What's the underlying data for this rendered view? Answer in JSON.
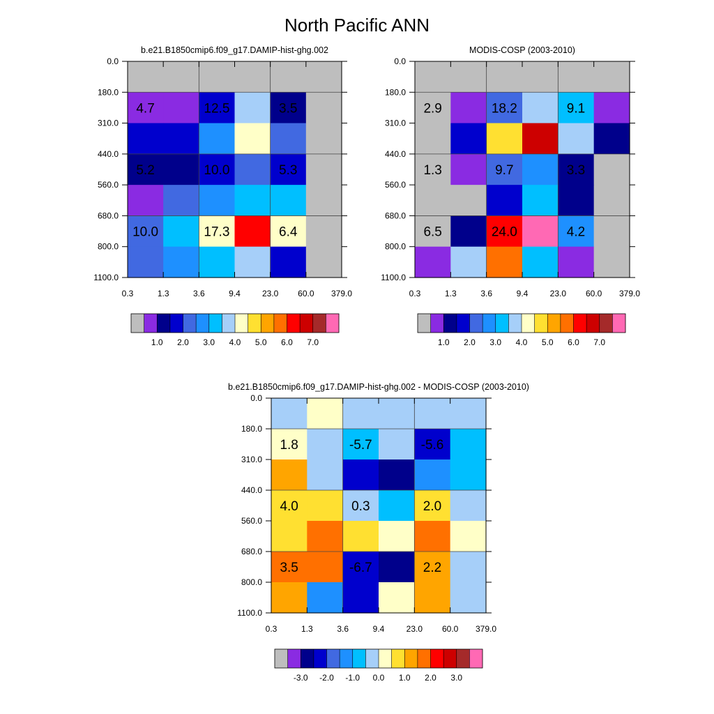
{
  "title": "North Pacific ANN",
  "palettes": {
    "abs": [
      "#bebebe",
      "#8a2be2",
      "#00008b",
      "#0000cd",
      "#4169e1",
      "#1e90ff",
      "#00bfff",
      "#a6cff9",
      "#ffffc8",
      "#ffe031",
      "#ffa500",
      "#ff7000",
      "#ff0000",
      "#cd0000",
      "#a52a2a",
      "#ff69b4"
    ],
    "diff": [
      "#bebebe",
      "#8a2be2",
      "#00008b",
      "#0000cd",
      "#4169e1",
      "#1e90ff",
      "#00bfff",
      "#a6cff9",
      "#ffffc8",
      "#ffe031",
      "#ffa500",
      "#ff7000",
      "#ff0000",
      "#cd0000",
      "#a52a2a",
      "#ff69b4"
    ]
  },
  "chart_data": [
    {
      "type": "heatmap",
      "title": "b.e21.B1850cmip6.f09_g17.DAMIP-hist-ghg.002",
      "x_tick_labels": [
        "0.3",
        "1.3",
        "3.6",
        "9.4",
        "23.0",
        "60.0",
        "379.0"
      ],
      "y_tick_labels": [
        "0.0",
        "180.0",
        "310.0",
        "440.0",
        "560.0",
        "680.0",
        "800.0",
        "1100.0"
      ],
      "colorbar_labels": [
        "1.0",
        "2.0",
        "3.0",
        "4.0",
        "5.0",
        "6.0",
        "7.0"
      ],
      "palette": "abs",
      "cells": [
        [
          0,
          0,
          0,
          0,
          0,
          0
        ],
        [
          1,
          1,
          3,
          7,
          2,
          0
        ],
        [
          3,
          3,
          5,
          8,
          4,
          0
        ],
        [
          2,
          2,
          3,
          4,
          3,
          0
        ],
        [
          1,
          4,
          5,
          6,
          6,
          0
        ],
        [
          4,
          6,
          8,
          12,
          8,
          0
        ],
        [
          4,
          5,
          6,
          7,
          3,
          0
        ]
      ],
      "annotations": [
        {
          "text": "4.7",
          "col": 0.5,
          "row": 1.5
        },
        {
          "text": "12.5",
          "col": 2.5,
          "row": 1.5
        },
        {
          "text": "3.5",
          "col": 4.5,
          "row": 1.5
        },
        {
          "text": "5.2",
          "col": 0.5,
          "row": 3.5
        },
        {
          "text": "10.0",
          "col": 2.5,
          "row": 3.5
        },
        {
          "text": "5.3",
          "col": 4.5,
          "row": 3.5
        },
        {
          "text": "10.0",
          "col": 0.5,
          "row": 5.5
        },
        {
          "text": "17.3",
          "col": 2.5,
          "row": 5.5
        },
        {
          "text": "6.4",
          "col": 4.5,
          "row": 5.5
        }
      ]
    },
    {
      "type": "heatmap",
      "title": "MODIS-COSP (2003-2010)",
      "x_tick_labels": [
        "0.3",
        "1.3",
        "3.6",
        "9.4",
        "23.0",
        "60.0",
        "379.0"
      ],
      "y_tick_labels": [
        "0.0",
        "180.0",
        "310.0",
        "440.0",
        "560.0",
        "680.0",
        "800.0",
        "1100.0"
      ],
      "colorbar_labels": [
        "1.0",
        "2.0",
        "3.0",
        "4.0",
        "5.0",
        "6.0",
        "7.0"
      ],
      "palette": "abs",
      "cells": [
        [
          0,
          0,
          0,
          0,
          0,
          0
        ],
        [
          0,
          1,
          4,
          7,
          6,
          1
        ],
        [
          0,
          3,
          9,
          13,
          7,
          2
        ],
        [
          0,
          1,
          4,
          5,
          2,
          0
        ],
        [
          0,
          0,
          3,
          6,
          2,
          0
        ],
        [
          0,
          2,
          12,
          15,
          5,
          0
        ],
        [
          1,
          7,
          11,
          6,
          1,
          0
        ]
      ],
      "annotations": [
        {
          "text": "2.9",
          "col": 0.5,
          "row": 1.5
        },
        {
          "text": "18.2",
          "col": 2.5,
          "row": 1.5
        },
        {
          "text": "9.1",
          "col": 4.5,
          "row": 1.5
        },
        {
          "text": "1.3",
          "col": 0.5,
          "row": 3.5
        },
        {
          "text": "9.7",
          "col": 2.5,
          "row": 3.5
        },
        {
          "text": "3.3",
          "col": 4.5,
          "row": 3.5
        },
        {
          "text": "6.5",
          "col": 0.5,
          "row": 5.5
        },
        {
          "text": "24.0",
          "col": 2.5,
          "row": 5.5
        },
        {
          "text": "4.2",
          "col": 4.5,
          "row": 5.5
        }
      ]
    },
    {
      "type": "heatmap",
      "title": "b.e21.B1850cmip6.f09_g17.DAMIP-hist-ghg.002 - MODIS-COSP (2003-2010)",
      "x_tick_labels": [
        "0.3",
        "1.3",
        "3.6",
        "9.4",
        "23.0",
        "60.0",
        "379.0"
      ],
      "y_tick_labels": [
        "0.0",
        "180.0",
        "310.0",
        "440.0",
        "560.0",
        "680.0",
        "800.0",
        "1100.0"
      ],
      "colorbar_labels": [
        "-3.0",
        "-2.0",
        "-1.0",
        "0.0",
        "1.0",
        "2.0",
        "3.0"
      ],
      "palette": "diff",
      "cells": [
        [
          7,
          8,
          7,
          7,
          7,
          7
        ],
        [
          8,
          7,
          6,
          7,
          3,
          6
        ],
        [
          10,
          7,
          3,
          2,
          5,
          6
        ],
        [
          9,
          9,
          7,
          6,
          9,
          7
        ],
        [
          9,
          11,
          9,
          8,
          11,
          8
        ],
        [
          11,
          11,
          3,
          2,
          10,
          7
        ],
        [
          10,
          5,
          3,
          8,
          10,
          7
        ]
      ],
      "annotations": [
        {
          "text": "1.8",
          "col": 0.5,
          "row": 1.5
        },
        {
          "text": "-5.7",
          "col": 2.5,
          "row": 1.5
        },
        {
          "text": "-5.6",
          "col": 4.5,
          "row": 1.5
        },
        {
          "text": "4.0",
          "col": 0.5,
          "row": 3.5
        },
        {
          "text": "0.3",
          "col": 2.5,
          "row": 3.5
        },
        {
          "text": "2.0",
          "col": 4.5,
          "row": 3.5
        },
        {
          "text": "3.5",
          "col": 0.5,
          "row": 5.5
        },
        {
          "text": "-6.7",
          "col": 2.5,
          "row": 5.5
        },
        {
          "text": "2.2",
          "col": 4.5,
          "row": 5.5
        }
      ]
    }
  ]
}
